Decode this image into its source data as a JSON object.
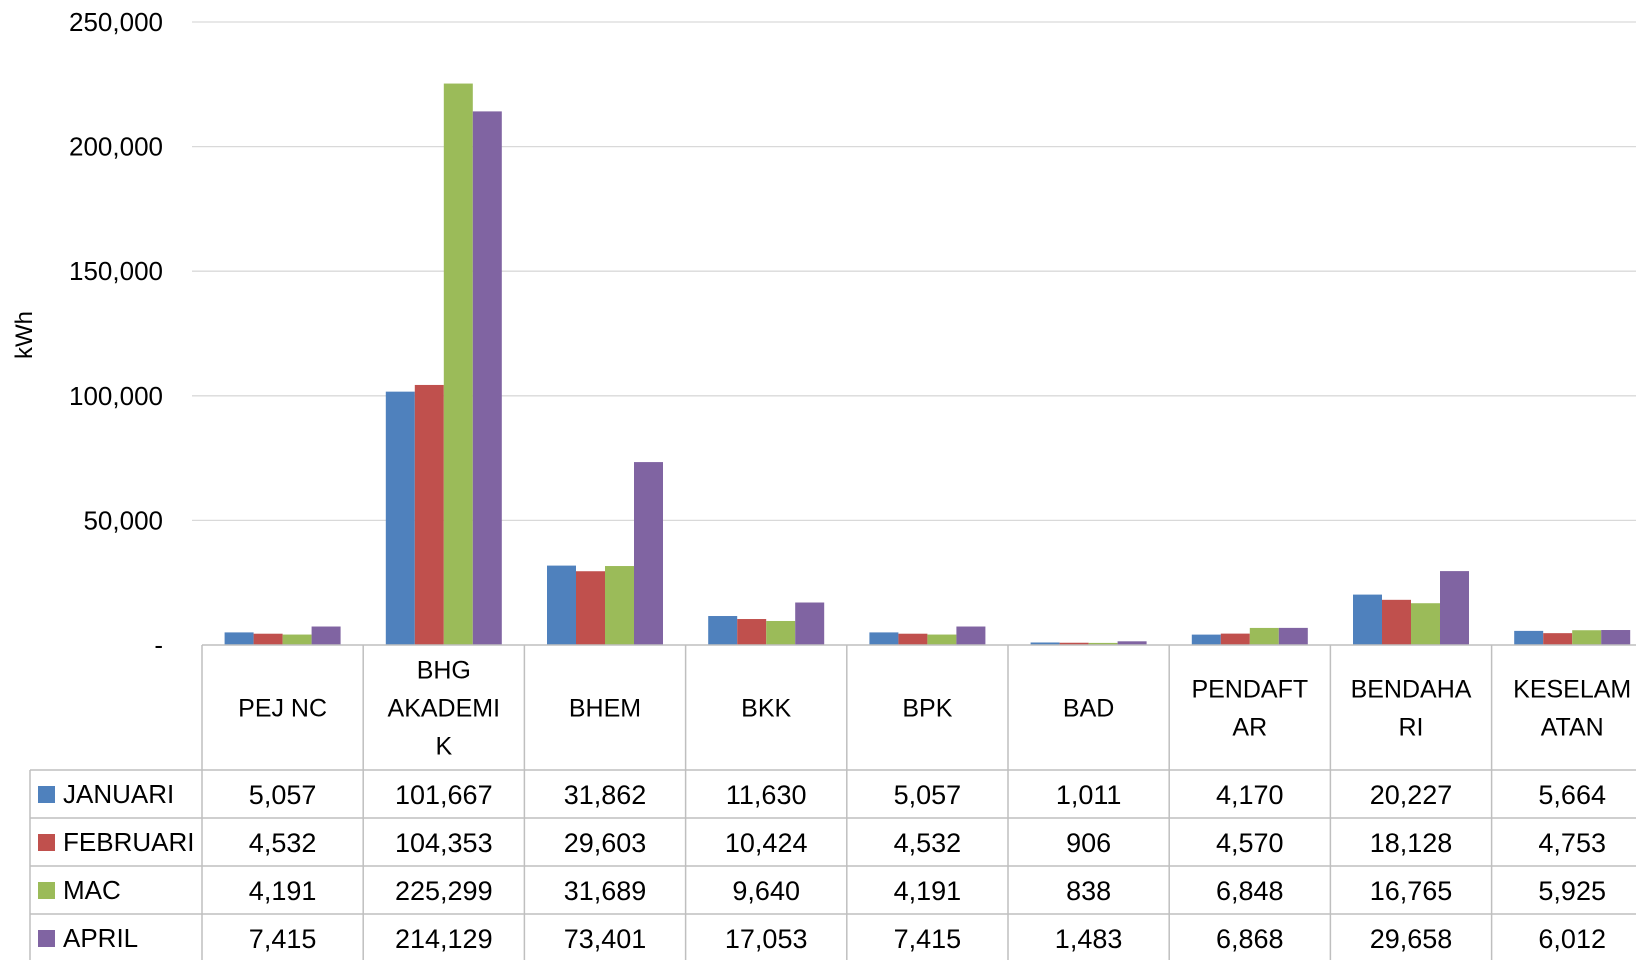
{
  "chart_data": {
    "type": "bar",
    "ylabel": "kWh",
    "ylim": [
      0,
      250000
    ],
    "yticks": [
      0,
      50000,
      100000,
      150000,
      200000,
      250000
    ],
    "ytick_labels": [
      "-",
      "50,000",
      "100,000",
      "150,000",
      "200,000",
      "250,000"
    ],
    "grid": true,
    "legend": "data-table",
    "categories": [
      "PEJ NC",
      "BHG AKADEMIK",
      "BHEM",
      "BKK",
      "BPK",
      "BAD",
      "PENDAFTAR",
      "BENDAHARI",
      "KESELAMATAN"
    ],
    "category_display_lines": [
      [
        "PEJ NC"
      ],
      [
        "BHG",
        "AKADEMI",
        "K"
      ],
      [
        "BHEM"
      ],
      [
        "BKK"
      ],
      [
        "BPK"
      ],
      [
        "BAD"
      ],
      [
        "PENDAFT",
        "AR"
      ],
      [
        "BENDAHA",
        "RI"
      ],
      [
        "KESELAM",
        "ATAN"
      ]
    ],
    "series": [
      {
        "name": "JANUARI",
        "color": "#4F81BD",
        "values": [
          5057,
          101667,
          31862,
          11630,
          5057,
          1011,
          4170,
          20227,
          5664
        ],
        "labels": [
          "5,057",
          "101,667",
          "31,862",
          "11,630",
          "5,057",
          "1,011",
          "4,170",
          "20,227",
          "5,664"
        ]
      },
      {
        "name": "FEBRUARI",
        "color": "#C0504D",
        "values": [
          4532,
          104353,
          29603,
          10424,
          4532,
          906,
          4570,
          18128,
          4753
        ],
        "labels": [
          "4,532",
          "104,353",
          "29,603",
          "10,424",
          "4,532",
          "906",
          "4,570",
          "18,128",
          "4,753"
        ]
      },
      {
        "name": "MAC",
        "color": "#9BBB59",
        "values": [
          4191,
          225299,
          31689,
          9640,
          4191,
          838,
          6848,
          16765,
          5925
        ],
        "labels": [
          "4,191",
          "225,299",
          "31,689",
          "9,640",
          "4,191",
          "838",
          "6,848",
          "16,765",
          "5,925"
        ]
      },
      {
        "name": "APRIL",
        "color": "#8064A2",
        "values": [
          7415,
          214129,
          73401,
          17053,
          7415,
          1483,
          6868,
          29658,
          6012
        ],
        "labels": [
          "7,415",
          "214,129",
          "73,401",
          "17,053",
          "7,415",
          "1,483",
          "6,868",
          "29,658",
          "6,012"
        ]
      }
    ]
  }
}
